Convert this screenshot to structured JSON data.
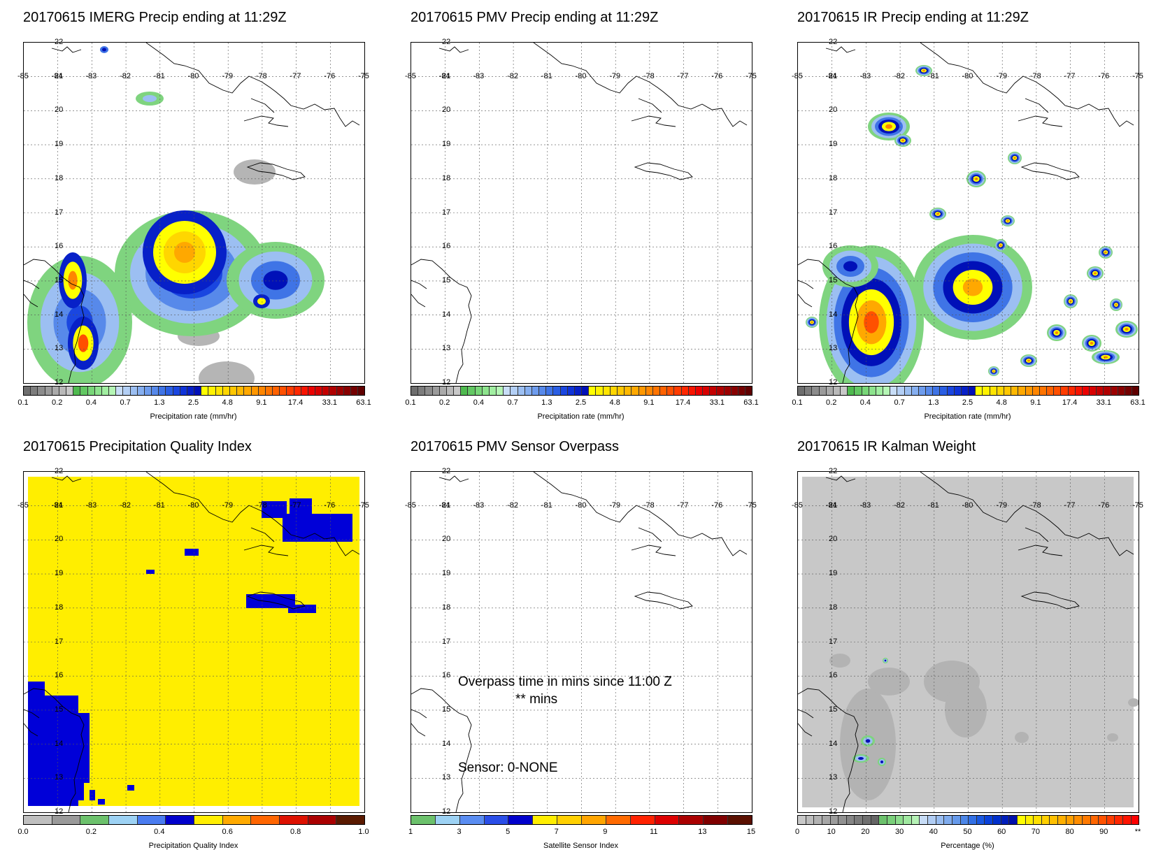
{
  "panels": [
    {
      "id": "imerg",
      "title": "20170615 IMERG Precip ending at 11:29Z",
      "colorbar_label": "Precipitation rate (mm/hr)",
      "ticks": [
        "0.1",
        "0.2",
        "0.4",
        "0.7",
        "1.3",
        "2.5",
        "4.8",
        "9.1",
        "17.4",
        "33.1",
        "63.1"
      ],
      "palette": "precip",
      "content": "imerg"
    },
    {
      "id": "pmv",
      "title": "20170615 PMV Precip ending at 11:29Z",
      "colorbar_label": "Precipitation rate (mm/hr)",
      "ticks": [
        "0.1",
        "0.2",
        "0.4",
        "0.7",
        "1.3",
        "2.5",
        "4.8",
        "9.1",
        "17.4",
        "33.1",
        "63.1"
      ],
      "palette": "precip",
      "content": "none"
    },
    {
      "id": "ir",
      "title": "20170615 IR Precip ending at 11:29Z",
      "colorbar_label": "Precipitation rate (mm/hr)",
      "ticks": [
        "0.1",
        "0.2",
        "0.4",
        "0.7",
        "1.3",
        "2.5",
        "4.8",
        "9.1",
        "17.4",
        "33.1",
        "63.1"
      ],
      "palette": "precip",
      "content": "ir"
    },
    {
      "id": "pqi",
      "title": "20170615 Precipitation Quality Index",
      "colorbar_label": "Precipitation Quality Index",
      "ticks": [
        "0.0",
        "0.2",
        "0.4",
        "0.6",
        "0.8",
        "1.0"
      ],
      "palette": "pqi",
      "content": "pqi"
    },
    {
      "id": "sensor",
      "title": "20170615 PMV Sensor Overpass",
      "colorbar_label": "Satellite Sensor Index",
      "ticks": [
        "1",
        "3",
        "5",
        "7",
        "9",
        "11",
        "13",
        "15"
      ],
      "palette": "sensor",
      "content": "none",
      "overlay": {
        "line1": "Overpass time in mins since 11:00 Z",
        "line2": "** mins",
        "line3": "Sensor:   0-NONE"
      }
    },
    {
      "id": "kalman",
      "title": "20170615 IR Kalman Weight",
      "colorbar_label": "Percentage (%)",
      "ticks": [
        "0",
        "10",
        "20",
        "30",
        "40",
        "50",
        "60",
        "70",
        "80",
        "90",
        "**"
      ],
      "palette": "kalman",
      "content": "kalman"
    }
  ],
  "axes": {
    "lon_labels": [
      "-85",
      "-84",
      "-83",
      "-82",
      "-81",
      "-80",
      "-79",
      "-78",
      "-77",
      "-76",
      "-75"
    ],
    "lat_labels": [
      "22",
      "21",
      "20",
      "19",
      "18",
      "17",
      "16",
      "15",
      "14",
      "13",
      "12"
    ],
    "lon_range": [
      -85,
      -75
    ],
    "lat_range": [
      12,
      22
    ]
  },
  "palettes": {
    "precip": [
      "#6e6e6e",
      "#7d7d7d",
      "#8c8c8c",
      "#9b9b9b",
      "#aaaaaa",
      "#b9b9b9",
      "#c8c8c8",
      "#4fba4f",
      "#63c863",
      "#78d678",
      "#8de38d",
      "#a1eea1",
      "#b5f5b5",
      "#c8ddf7",
      "#b3cff5",
      "#9cbff2",
      "#86aff0",
      "#6e9ced",
      "#5789ea",
      "#3f74e6",
      "#2a5ee3",
      "#1a46e0",
      "#0f33d8",
      "#0720c8",
      "#0010b8",
      "#ffff00",
      "#fff200",
      "#ffe400",
      "#ffd600",
      "#ffc700",
      "#ffb800",
      "#ffa800",
      "#ff9700",
      "#ff8600",
      "#ff7400",
      "#ff6200",
      "#ff5000",
      "#ff3c00",
      "#ff2800",
      "#f81400",
      "#ec0000",
      "#d80000",
      "#c40000",
      "#b00000",
      "#9c0000",
      "#880000",
      "#740000",
      "#600000"
    ],
    "pqi": [
      "#bfbfbf",
      "#9a9a9a",
      "#6cc16c",
      "#9dd2f4",
      "#4a7cf0",
      "#0000cc",
      "#ffee00",
      "#ffaa00",
      "#ff6600",
      "#dd1100",
      "#aa0000",
      "#5a1a00"
    ],
    "sensor": [
      "#6cc16c",
      "#9dd2f4",
      "#5a8df2",
      "#2a4ee8",
      "#0000cc",
      "#ffee00",
      "#ffd000",
      "#ffa500",
      "#ff6a00",
      "#ff2200",
      "#dd0000",
      "#aa0000",
      "#800000",
      "#5a1000"
    ],
    "kalman": [
      "#c8c8c8",
      "#bdbdbd",
      "#b2b2b2",
      "#a7a7a7",
      "#9c9c9c",
      "#919191",
      "#868686",
      "#7b7b7b",
      "#707070",
      "#656565",
      "#6cc16c",
      "#7ad07a",
      "#8ddd8d",
      "#a0e8a0",
      "#b6f2b6",
      "#c7dcf6",
      "#b1cdf4",
      "#99bdf1",
      "#80acee",
      "#669aeb",
      "#4c86e8",
      "#3270e5",
      "#1a59e2",
      "#0a42db",
      "#0030cc",
      "#001fbb",
      "#0010aa",
      "#ffff00",
      "#fff000",
      "#ffe000",
      "#ffd000",
      "#ffc000",
      "#ffb000",
      "#ff9f00",
      "#ff8d00",
      "#ff7a00",
      "#ff6600",
      "#ff5200",
      "#ff3d00",
      "#ff2800",
      "#ff1400",
      "#ff0000"
    ]
  }
}
